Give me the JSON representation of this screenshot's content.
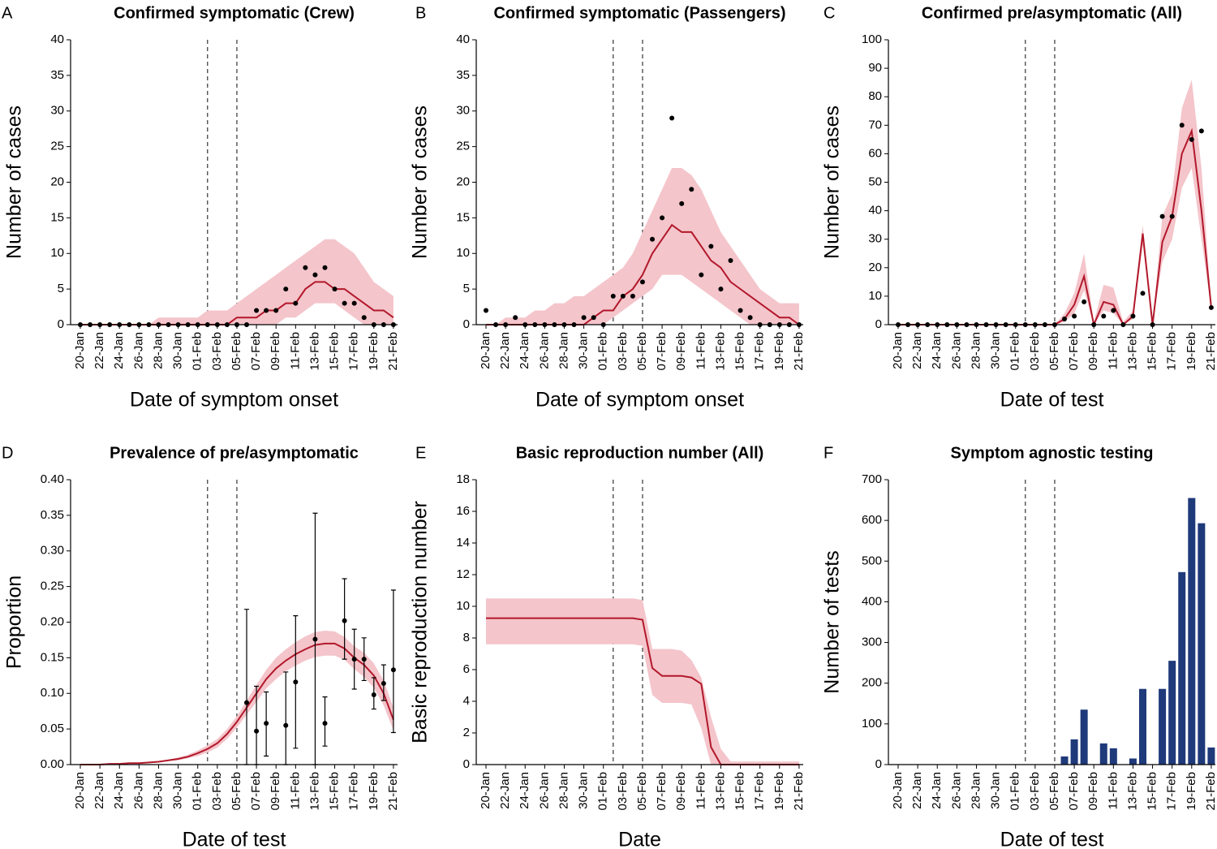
{
  "chart_data": [
    {
      "type": "line",
      "label": "A",
      "title": "Confirmed symptomatic (Crew)",
      "xlabel": "Date of symptom onset",
      "ylabel": "Number of cases",
      "categories": [
        "20-Jan",
        null,
        "22-Jan",
        null,
        "24-Jan",
        null,
        "26-Jan",
        null,
        "28-Jan",
        null,
        "30-Jan",
        null,
        "01-Feb",
        null,
        "03-Feb",
        null,
        "05-Feb",
        null,
        "07-Feb",
        null,
        "09-Feb",
        null,
        "11-Feb",
        null,
        "13-Feb",
        null,
        "15-Feb",
        null,
        "17-Feb",
        null,
        "19-Feb",
        null,
        "21-Feb"
      ],
      "ylim": [
        0,
        40
      ],
      "yticks": [
        0,
        5,
        10,
        15,
        20,
        25,
        30,
        35,
        40
      ],
      "vlines": [
        13,
        16
      ],
      "line_color": "#b2182b",
      "band_color": "#f4c5cb",
      "point_color": "#000000",
      "line": [
        0,
        0,
        0,
        0,
        0,
        0,
        0,
        0,
        0,
        0,
        0,
        0,
        0,
        0,
        0,
        0,
        1,
        1,
        1,
        2,
        2,
        3,
        3,
        5,
        6,
        6,
        5,
        5,
        4,
        3,
        2,
        2,
        1
      ],
      "upper": [
        0,
        0,
        0,
        0,
        0,
        0,
        0,
        0,
        1,
        1,
        1,
        1,
        1,
        2,
        2,
        2,
        3,
        4,
        5,
        6,
        7,
        8,
        9,
        10,
        11,
        12,
        12,
        11,
        10,
        8,
        6,
        5,
        4
      ],
      "lower": [
        0,
        0,
        0,
        0,
        0,
        0,
        0,
        0,
        0,
        0,
        0,
        0,
        0,
        0,
        0,
        0,
        0,
        0,
        0,
        0,
        0,
        1,
        1,
        2,
        3,
        3,
        3,
        2,
        1,
        0,
        0,
        0,
        0
      ],
      "points": [
        0,
        0,
        0,
        0,
        0,
        0,
        0,
        0,
        0,
        0,
        0,
        0,
        0,
        0,
        0,
        0,
        0,
        0,
        2,
        2,
        2,
        5,
        3,
        8,
        7,
        8,
        5,
        3,
        3,
        1,
        0,
        0,
        0
      ]
    },
    {
      "type": "line",
      "label": "B",
      "title": "Confirmed symptomatic (Passengers)",
      "xlabel": "Date of symptom onset",
      "ylabel": "Number of cases",
      "categories": [
        "20-Jan",
        null,
        "22-Jan",
        null,
        "24-Jan",
        null,
        "26-Jan",
        null,
        "28-Jan",
        null,
        "30-Jan",
        null,
        "01-Feb",
        null,
        "03-Feb",
        null,
        "05-Feb",
        null,
        "07-Feb",
        null,
        "09-Feb",
        null,
        "11-Feb",
        null,
        "13-Feb",
        null,
        "15-Feb",
        null,
        "17-Feb",
        null,
        "19-Feb",
        null,
        "21-Feb"
      ],
      "ylim": [
        0,
        40
      ],
      "yticks": [
        0,
        5,
        10,
        15,
        20,
        25,
        30,
        35,
        40
      ],
      "vlines": [
        13,
        16
      ],
      "line_color": "#b2182b",
      "band_color": "#f4c5cb",
      "point_color": "#000000",
      "line": [
        0,
        0,
        0,
        0,
        0,
        0,
        0,
        0,
        0,
        0,
        0,
        1,
        2,
        2,
        4,
        5,
        7,
        10,
        12,
        14,
        13,
        13,
        11,
        9,
        8,
        6,
        5,
        4,
        3,
        2,
        1,
        1,
        0
      ],
      "upper": [
        0,
        0,
        1,
        1,
        1,
        2,
        2,
        3,
        3,
        4,
        4,
        5,
        6,
        7,
        8,
        10,
        13,
        16,
        19,
        22,
        22,
        21,
        19,
        16,
        13,
        11,
        9,
        7,
        5,
        4,
        3,
        3,
        3
      ],
      "lower": [
        0,
        0,
        0,
        0,
        0,
        0,
        0,
        0,
        0,
        0,
        0,
        0,
        0,
        1,
        2,
        3,
        4,
        5,
        7,
        7,
        7,
        6,
        5,
        4,
        3,
        2,
        1,
        0,
        0,
        0,
        0,
        0,
        0
      ],
      "points": [
        2,
        0,
        0,
        1,
        0,
        0,
        0,
        0,
        0,
        0,
        1,
        1,
        0,
        4,
        4,
        4,
        6,
        12,
        15,
        29,
        17,
        19,
        7,
        11,
        5,
        9,
        2,
        1,
        0,
        0,
        0,
        0,
        0
      ]
    },
    {
      "type": "line",
      "label": "C",
      "title": "Confirmed pre/asymptomatic (All)",
      "xlabel": "Date of test",
      "ylabel": "Number of cases",
      "categories": [
        "20-Jan",
        null,
        "22-Jan",
        null,
        "24-Jan",
        null,
        "26-Jan",
        null,
        "28-Jan",
        null,
        "30-Jan",
        null,
        "01-Feb",
        null,
        "03-Feb",
        null,
        "05-Feb",
        null,
        "07-Feb",
        null,
        "09-Feb",
        null,
        "11-Feb",
        null,
        "13-Feb",
        null,
        "15-Feb",
        null,
        "17-Feb",
        null,
        "19-Feb",
        null,
        "21-Feb"
      ],
      "ylim": [
        0,
        100
      ],
      "yticks": [
        0,
        10,
        20,
        30,
        40,
        50,
        60,
        70,
        80,
        90,
        100
      ],
      "vlines": [
        13,
        16
      ],
      "line_color": "#b2182b",
      "band_color": "#f4c5cb",
      "point_color": "#000000",
      "line": [
        0,
        0,
        0,
        0,
        0,
        0,
        0,
        0,
        0,
        0,
        0,
        0,
        0,
        0,
        0,
        0,
        0,
        2,
        7,
        17,
        0,
        8,
        7,
        0,
        3,
        32,
        0,
        29,
        38,
        60,
        68,
        40,
        6
      ],
      "upper": [
        0,
        0,
        0,
        0,
        0,
        0,
        0,
        0,
        0,
        0,
        0,
        0,
        0,
        0,
        0,
        0,
        0,
        4,
        11,
        25,
        1,
        14,
        13,
        1,
        5,
        35,
        1,
        38,
        46,
        76,
        86,
        55,
        7
      ],
      "lower": [
        0,
        0,
        0,
        0,
        0,
        0,
        0,
        0,
        0,
        0,
        0,
        0,
        0,
        0,
        0,
        0,
        0,
        1,
        4,
        12,
        0,
        5,
        4,
        0,
        2,
        28,
        0,
        22,
        30,
        48,
        55,
        30,
        5
      ],
      "points": [
        0,
        0,
        0,
        0,
        0,
        0,
        0,
        0,
        0,
        0,
        0,
        0,
        0,
        0,
        0,
        0,
        0,
        2,
        3,
        8,
        0,
        3,
        5,
        0,
        3,
        11,
        0,
        38,
        38,
        70,
        65,
        68,
        6
      ]
    },
    {
      "type": "line",
      "label": "D",
      "title": "Prevalence of pre/asymptomatic",
      "xlabel": "Date of test",
      "ylabel": "Proportion",
      "categories": [
        "20-Jan",
        null,
        "22-Jan",
        null,
        "24-Jan",
        null,
        "26-Jan",
        null,
        "28-Jan",
        null,
        "30-Jan",
        null,
        "01-Feb",
        null,
        "03-Feb",
        null,
        "05-Feb",
        null,
        "07-Feb",
        null,
        "09-Feb",
        null,
        "11-Feb",
        null,
        "13-Feb",
        null,
        "15-Feb",
        null,
        "17-Feb",
        null,
        "19-Feb",
        null,
        "21-Feb"
      ],
      "ylim": [
        0,
        0.4
      ],
      "yticks": [
        {
          "value": 0,
          "label": "0.00"
        },
        {
          "value": 0.05,
          "label": "0.05"
        },
        {
          "value": 0.1,
          "label": "0.10"
        },
        {
          "value": 0.15,
          "label": "0.15"
        },
        {
          "value": 0.2,
          "label": "0.20"
        },
        {
          "value": 0.25,
          "label": "0.25"
        },
        {
          "value": 0.3,
          "label": "0.30"
        },
        {
          "value": 0.35,
          "label": "0.35"
        },
        {
          "value": 0.4,
          "label": "0.40"
        }
      ],
      "vlines": [
        13,
        16
      ],
      "line_color": "#b2182b",
      "band_color": "#f4c5cb",
      "point_color": "#000000",
      "line": [
        0,
        0,
        0,
        0.001,
        0.001,
        0.002,
        0.002,
        0.003,
        0.004,
        0.006,
        0.008,
        0.011,
        0.016,
        0.022,
        0.03,
        0.043,
        0.06,
        0.08,
        0.1,
        0.12,
        0.135,
        0.146,
        0.155,
        0.162,
        0.168,
        0.17,
        0.17,
        0.163,
        0.15,
        0.14,
        0.125,
        0.1,
        0.063
      ],
      "upper": [
        0,
        0,
        0.001,
        0.001,
        0.002,
        0.002,
        0.003,
        0.004,
        0.005,
        0.007,
        0.01,
        0.014,
        0.02,
        0.027,
        0.036,
        0.05,
        0.068,
        0.09,
        0.112,
        0.133,
        0.15,
        0.162,
        0.172,
        0.18,
        0.186,
        0.188,
        0.187,
        0.179,
        0.166,
        0.157,
        0.142,
        0.118,
        0.08
      ],
      "lower": [
        0,
        0,
        0,
        0,
        0.001,
        0.001,
        0.002,
        0.002,
        0.003,
        0.005,
        0.006,
        0.009,
        0.012,
        0.017,
        0.024,
        0.036,
        0.052,
        0.07,
        0.088,
        0.107,
        0.12,
        0.131,
        0.139,
        0.146,
        0.151,
        0.153,
        0.153,
        0.147,
        0.134,
        0.123,
        0.108,
        0.083,
        0.048
      ],
      "points": [
        null,
        null,
        null,
        null,
        null,
        null,
        null,
        null,
        null,
        null,
        null,
        null,
        null,
        null,
        null,
        null,
        null,
        0.087,
        0.047,
        0.058,
        null,
        0.055,
        0.116,
        null,
        0.176,
        0.058,
        null,
        0.202,
        0.148,
        0.148,
        0.098,
        0.114,
        0.133
      ],
      "points_lower": [
        null,
        null,
        null,
        null,
        null,
        null,
        null,
        null,
        null,
        null,
        null,
        null,
        null,
        null,
        null,
        null,
        null,
        0,
        0,
        0.012,
        null,
        0,
        0.023,
        null,
        0,
        0.026,
        null,
        0.148,
        0.106,
        0.118,
        0.078,
        0.09,
        0.045
      ],
      "points_upper": [
        null,
        null,
        null,
        null,
        null,
        null,
        null,
        null,
        null,
        null,
        null,
        null,
        null,
        null,
        null,
        null,
        null,
        0.218,
        0.11,
        0.102,
        null,
        0.13,
        0.209,
        null,
        0.353,
        0.095,
        null,
        0.261,
        0.19,
        0.178,
        0.122,
        0.14,
        0.245
      ]
    },
    {
      "type": "line",
      "label": "E",
      "title": "Basic reproduction number (All)",
      "xlabel": "Date",
      "ylabel": "Basic reproduction number",
      "categories": [
        "20-Jan",
        null,
        "22-Jan",
        null,
        "24-Jan",
        null,
        "26-Jan",
        null,
        "28-Jan",
        null,
        "30-Jan",
        null,
        "01-Feb",
        null,
        "03-Feb",
        null,
        "05-Feb",
        null,
        "07-Feb",
        null,
        "09-Feb",
        null,
        "11-Feb",
        null,
        "13-Feb",
        null,
        "15-Feb",
        null,
        "17-Feb",
        null,
        "19-Feb",
        null,
        "21-Feb"
      ],
      "ylim": [
        0,
        18
      ],
      "yticks": [
        0,
        2,
        4,
        6,
        8,
        10,
        12,
        14,
        16,
        18
      ],
      "vlines": [
        13,
        16
      ],
      "line_color": "#b2182b",
      "band_color": "#f4c5cb",
      "line": [
        9.25,
        9.25,
        9.25,
        9.25,
        9.25,
        9.25,
        9.25,
        9.25,
        9.25,
        9.25,
        9.25,
        9.25,
        9.25,
        9.25,
        9.25,
        9.25,
        9.15,
        6.1,
        5.6,
        5.6,
        5.6,
        5.5,
        5.1,
        1.1,
        0,
        0,
        0,
        0,
        0,
        0,
        0,
        0,
        0
      ],
      "upper": [
        10.5,
        10.5,
        10.5,
        10.5,
        10.5,
        10.5,
        10.5,
        10.5,
        10.5,
        10.5,
        10.5,
        10.5,
        10.5,
        10.5,
        10.5,
        10.5,
        10.4,
        7.3,
        7.3,
        7.3,
        7.2,
        6.6,
        5.5,
        3.0,
        1.0,
        0.2,
        0.2,
        0.2,
        0.2,
        0.2,
        0.2,
        0.2,
        0.2
      ],
      "lower": [
        7.6,
        7.6,
        7.6,
        7.6,
        7.6,
        7.6,
        7.6,
        7.6,
        7.6,
        7.6,
        7.6,
        7.6,
        7.6,
        7.6,
        7.6,
        7.6,
        7.5,
        4.4,
        3.9,
        3.9,
        3.9,
        3.8,
        2.3,
        0,
        0,
        0,
        0,
        0,
        0,
        0,
        0,
        0,
        0
      ]
    },
    {
      "type": "bar",
      "label": "F",
      "title": "Symptom agnostic testing",
      "xlabel": "Date of test",
      "ylabel": "Number of tests",
      "categories": [
        "20-Jan",
        null,
        "22-Jan",
        null,
        "24-Jan",
        null,
        "26-Jan",
        null,
        "28-Jan",
        null,
        "30-Jan",
        null,
        "01-Feb",
        null,
        "03-Feb",
        null,
        "05-Feb",
        null,
        "07-Feb",
        null,
        "09-Feb",
        null,
        "11-Feb",
        null,
        "13-Feb",
        null,
        "15-Feb",
        null,
        "17-Feb",
        null,
        "19-Feb",
        null,
        "21-Feb"
      ],
      "ylim": [
        0,
        700
      ],
      "yticks": [
        0,
        100,
        200,
        300,
        400,
        500,
        600,
        700
      ],
      "vlines": [
        13,
        16
      ],
      "color": "#1f3a7a",
      "values": [
        0,
        0,
        0,
        0,
        0,
        0,
        0,
        0,
        0,
        0,
        0,
        0,
        0,
        0,
        0,
        0,
        0,
        20,
        62,
        135,
        0,
        52,
        40,
        0,
        15,
        186,
        0,
        186,
        255,
        473,
        655,
        593,
        42
      ]
    }
  ]
}
